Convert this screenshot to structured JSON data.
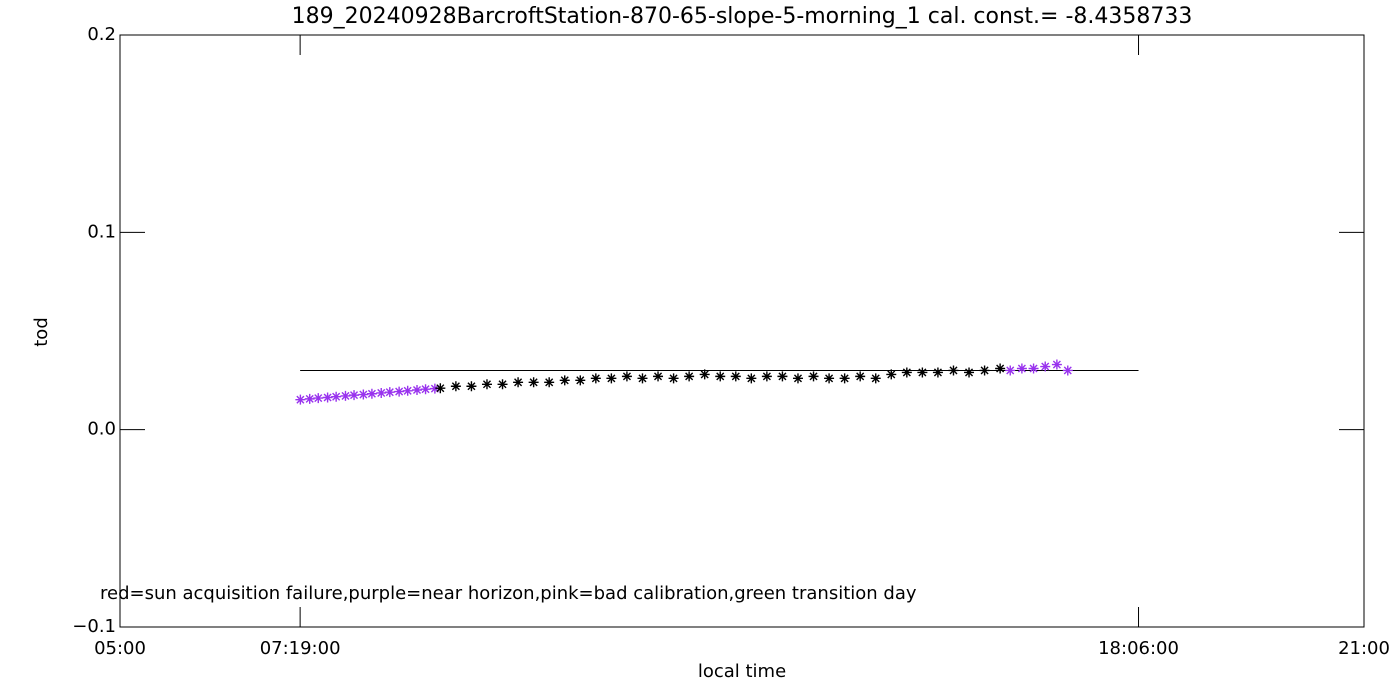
{
  "chart_data": {
    "type": "scatter",
    "title": "189_20240928BarcroftStation-870-65-slope-5-morning_1 cal. const.= -8.4358733",
    "xlabel": "local time",
    "ylabel": "tod",
    "annotation": "red=sun acquisition failure,purple=near horizon,pink=bad calibration,green transition day",
    "xlim": [
      5,
      21
    ],
    "xticks": [
      {
        "value": 5,
        "label": "05:00"
      },
      {
        "value": 7.3167,
        "label": "07:19:00"
      },
      {
        "value": 18.1,
        "label": "18:06:00"
      },
      {
        "value": 21,
        "label": "21:00"
      }
    ],
    "ylim": [
      -0.1,
      0.2
    ],
    "yticks": [
      {
        "value": -0.1,
        "label": "−0.1"
      },
      {
        "value": 0,
        "label": "0.0"
      },
      0.1,
      0.2
    ],
    "reference_line": {
      "color": "#000000",
      "x": [
        7.3167,
        18.1
      ],
      "values": [
        0.03,
        0.03
      ]
    },
    "series": [
      {
        "color": "#9933ee",
        "x": [
          7.32,
          7.44,
          7.55,
          7.67,
          7.78,
          7.9,
          8.01,
          8.13,
          8.24,
          8.36,
          8.47,
          8.59,
          8.7,
          8.82,
          8.93,
          9.05
        ],
        "values": [
          0.0152,
          0.0156,
          0.016,
          0.0163,
          0.0167,
          0.0171,
          0.0175,
          0.0178,
          0.0182,
          0.0186,
          0.019,
          0.0193,
          0.0197,
          0.0201,
          0.0205,
          0.0208
        ]
      },
      {
        "color": "#000000",
        "x": [
          9.12,
          9.32,
          9.52,
          9.72,
          9.92,
          10.12,
          10.32,
          10.52,
          10.72,
          10.92,
          11.12,
          11.32,
          11.52,
          11.72,
          11.92,
          12.12,
          12.32,
          12.52,
          12.72,
          12.92,
          13.12,
          13.32,
          13.52,
          13.72,
          13.92,
          14.12,
          14.32,
          14.52,
          14.72,
          14.92,
          15.12,
          15.32,
          15.52,
          15.72,
          15.92,
          16.12,
          16.32
        ],
        "values": [
          0.021,
          0.022,
          0.022,
          0.023,
          0.023,
          0.024,
          0.024,
          0.024,
          0.025,
          0.025,
          0.026,
          0.026,
          0.027,
          0.026,
          0.027,
          0.026,
          0.027,
          0.028,
          0.027,
          0.027,
          0.026,
          0.027,
          0.027,
          0.026,
          0.027,
          0.026,
          0.026,
          0.027,
          0.026,
          0.028,
          0.029,
          0.029,
          0.029,
          0.03,
          0.029,
          0.03,
          0.031
        ]
      },
      {
        "color": "#9933ee",
        "x": [
          16.45,
          16.6,
          16.75,
          16.9,
          17.05,
          17.19
        ],
        "values": [
          0.03,
          0.031,
          0.031,
          0.032,
          0.033,
          0.03
        ]
      }
    ]
  }
}
